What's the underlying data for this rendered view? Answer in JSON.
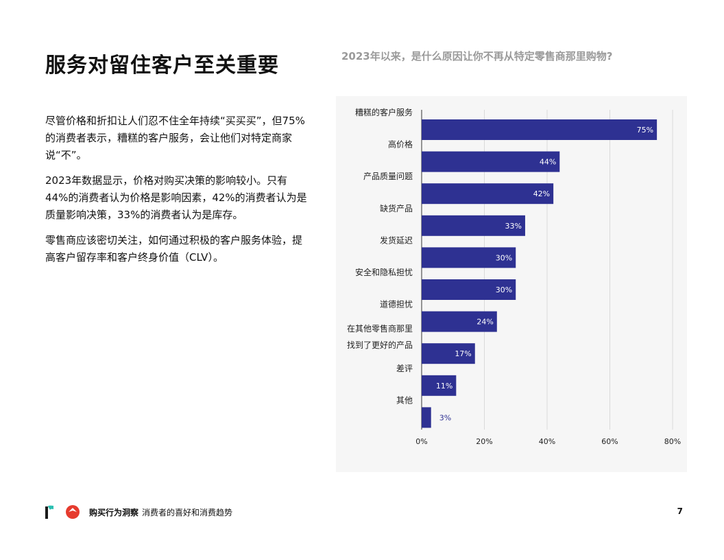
{
  "page": {
    "title": "服务对留住客户至关重要",
    "chart_question": "2023年以来，是什么原因让你不再从特定零售商那里购物?",
    "paragraphs": [
      "尽管价格和折扣让人们忍不住全年持续“买买买”，但75%的消费者表示，糟糕的客户服务，会让他们对特定商家说“不”。",
      "2023年数据显示，价格对购买决策的影响较小。只有44%的消费者认为价格是影响因素，42%的消费者认为是质量影响决策，33%的消费者认为是库存。",
      "零售商应该密切关注，如何通过积极的客户服务体验，提高客户留存率和客户终身价值（CLV）。"
    ]
  },
  "footer": {
    "brand": "购买行为洞察",
    "subtitle": "消费者的喜好和消费趋势",
    "page_number": "7",
    "logo_colors": {
      "accent_teal": "#2bbfb1",
      "accent_red": "#e63b2e",
      "dark": "#1a1a1a"
    }
  },
  "chart_data": {
    "type": "bar",
    "orientation": "horizontal",
    "categories": [
      "糟糕的客户服务",
      "高价格",
      "产品质量问题",
      "缺货产品",
      "发货延迟",
      "安全和隐私担忧",
      "道德担忧",
      "在其他零售商那里找到了更好的产品",
      "差评",
      "其他"
    ],
    "category_lines": [
      [
        "糟糕的客户服务"
      ],
      [
        "高价格"
      ],
      [
        "产品质量问题"
      ],
      [
        "缺货产品"
      ],
      [
        "发货延迟"
      ],
      [
        "安全和隐私担忧"
      ],
      [
        "道德担忧"
      ],
      [
        "在其他零售商那里",
        "找到了更好的产品"
      ],
      [
        "差评"
      ],
      [
        "其他"
      ]
    ],
    "values": [
      75,
      44,
      42,
      33,
      30,
      30,
      24,
      17,
      11,
      3
    ],
    "value_labels": [
      "75%",
      "44%",
      "42%",
      "33%",
      "30%",
      "30%",
      "24%",
      "17%",
      "11%",
      "3%"
    ],
    "x_ticks": [
      0,
      20,
      40,
      60,
      80
    ],
    "x_tick_labels": [
      "0%",
      "20%",
      "40%",
      "60%",
      "80%"
    ],
    "xlim": [
      0,
      80
    ],
    "grid": true,
    "bar_color": "#2e3192",
    "background_color": "#f6f6f6",
    "grid_color": "#d9d9d9"
  }
}
